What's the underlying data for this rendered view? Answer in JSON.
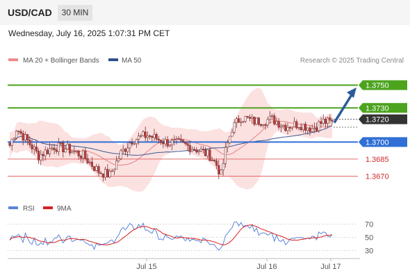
{
  "header": {
    "symbol": "USD/CAD",
    "timeframe": "30 MIN",
    "datetime": "Wednesday, July 16, 2025 1:07:31 PM CET"
  },
  "legend": {
    "ma20_label": "MA 20 + Bollinger Bands",
    "ma50_label": "MA 50",
    "credit": "Research © 2025 Trading Central"
  },
  "colors": {
    "resistance": "#4ca31e",
    "support": "#2f6fd6",
    "pivot": "#333333",
    "target_text": "#cf2a2a",
    "band": "#f9c8c8",
    "candle_up": "#ffffff",
    "candle_down": "#c24040",
    "ma50": "#3a5a8c",
    "arrow": "#2b5c9a",
    "rsi": "#5b84d8",
    "rsi_ma": "#d62020"
  },
  "chart_data": [
    {
      "type": "candlestick",
      "y_range": [
        1.3655,
        1.3765
      ],
      "x_axis_labels": [
        "Jul 15",
        "Jul 16",
        "Jul 17"
      ],
      "levels": [
        {
          "value": "1.3750",
          "kind": "resistance"
        },
        {
          "value": "1.3730",
          "kind": "resistance"
        },
        {
          "value": "1.3720",
          "kind": "pivot"
        },
        {
          "value": "1.3700",
          "kind": "support"
        },
        {
          "value": "1.3685",
          "kind": "target"
        },
        {
          "value": "1.3670",
          "kind": "target"
        }
      ],
      "scenario_arrow": {
        "from": 1.3717,
        "to": 1.3748
      }
    },
    {
      "type": "line",
      "title": "RSI",
      "series": [
        {
          "name": "RSI"
        },
        {
          "name": "9MA"
        }
      ],
      "y_ticks": [
        70,
        50,
        30
      ],
      "y_range": [
        20,
        80
      ]
    }
  ]
}
